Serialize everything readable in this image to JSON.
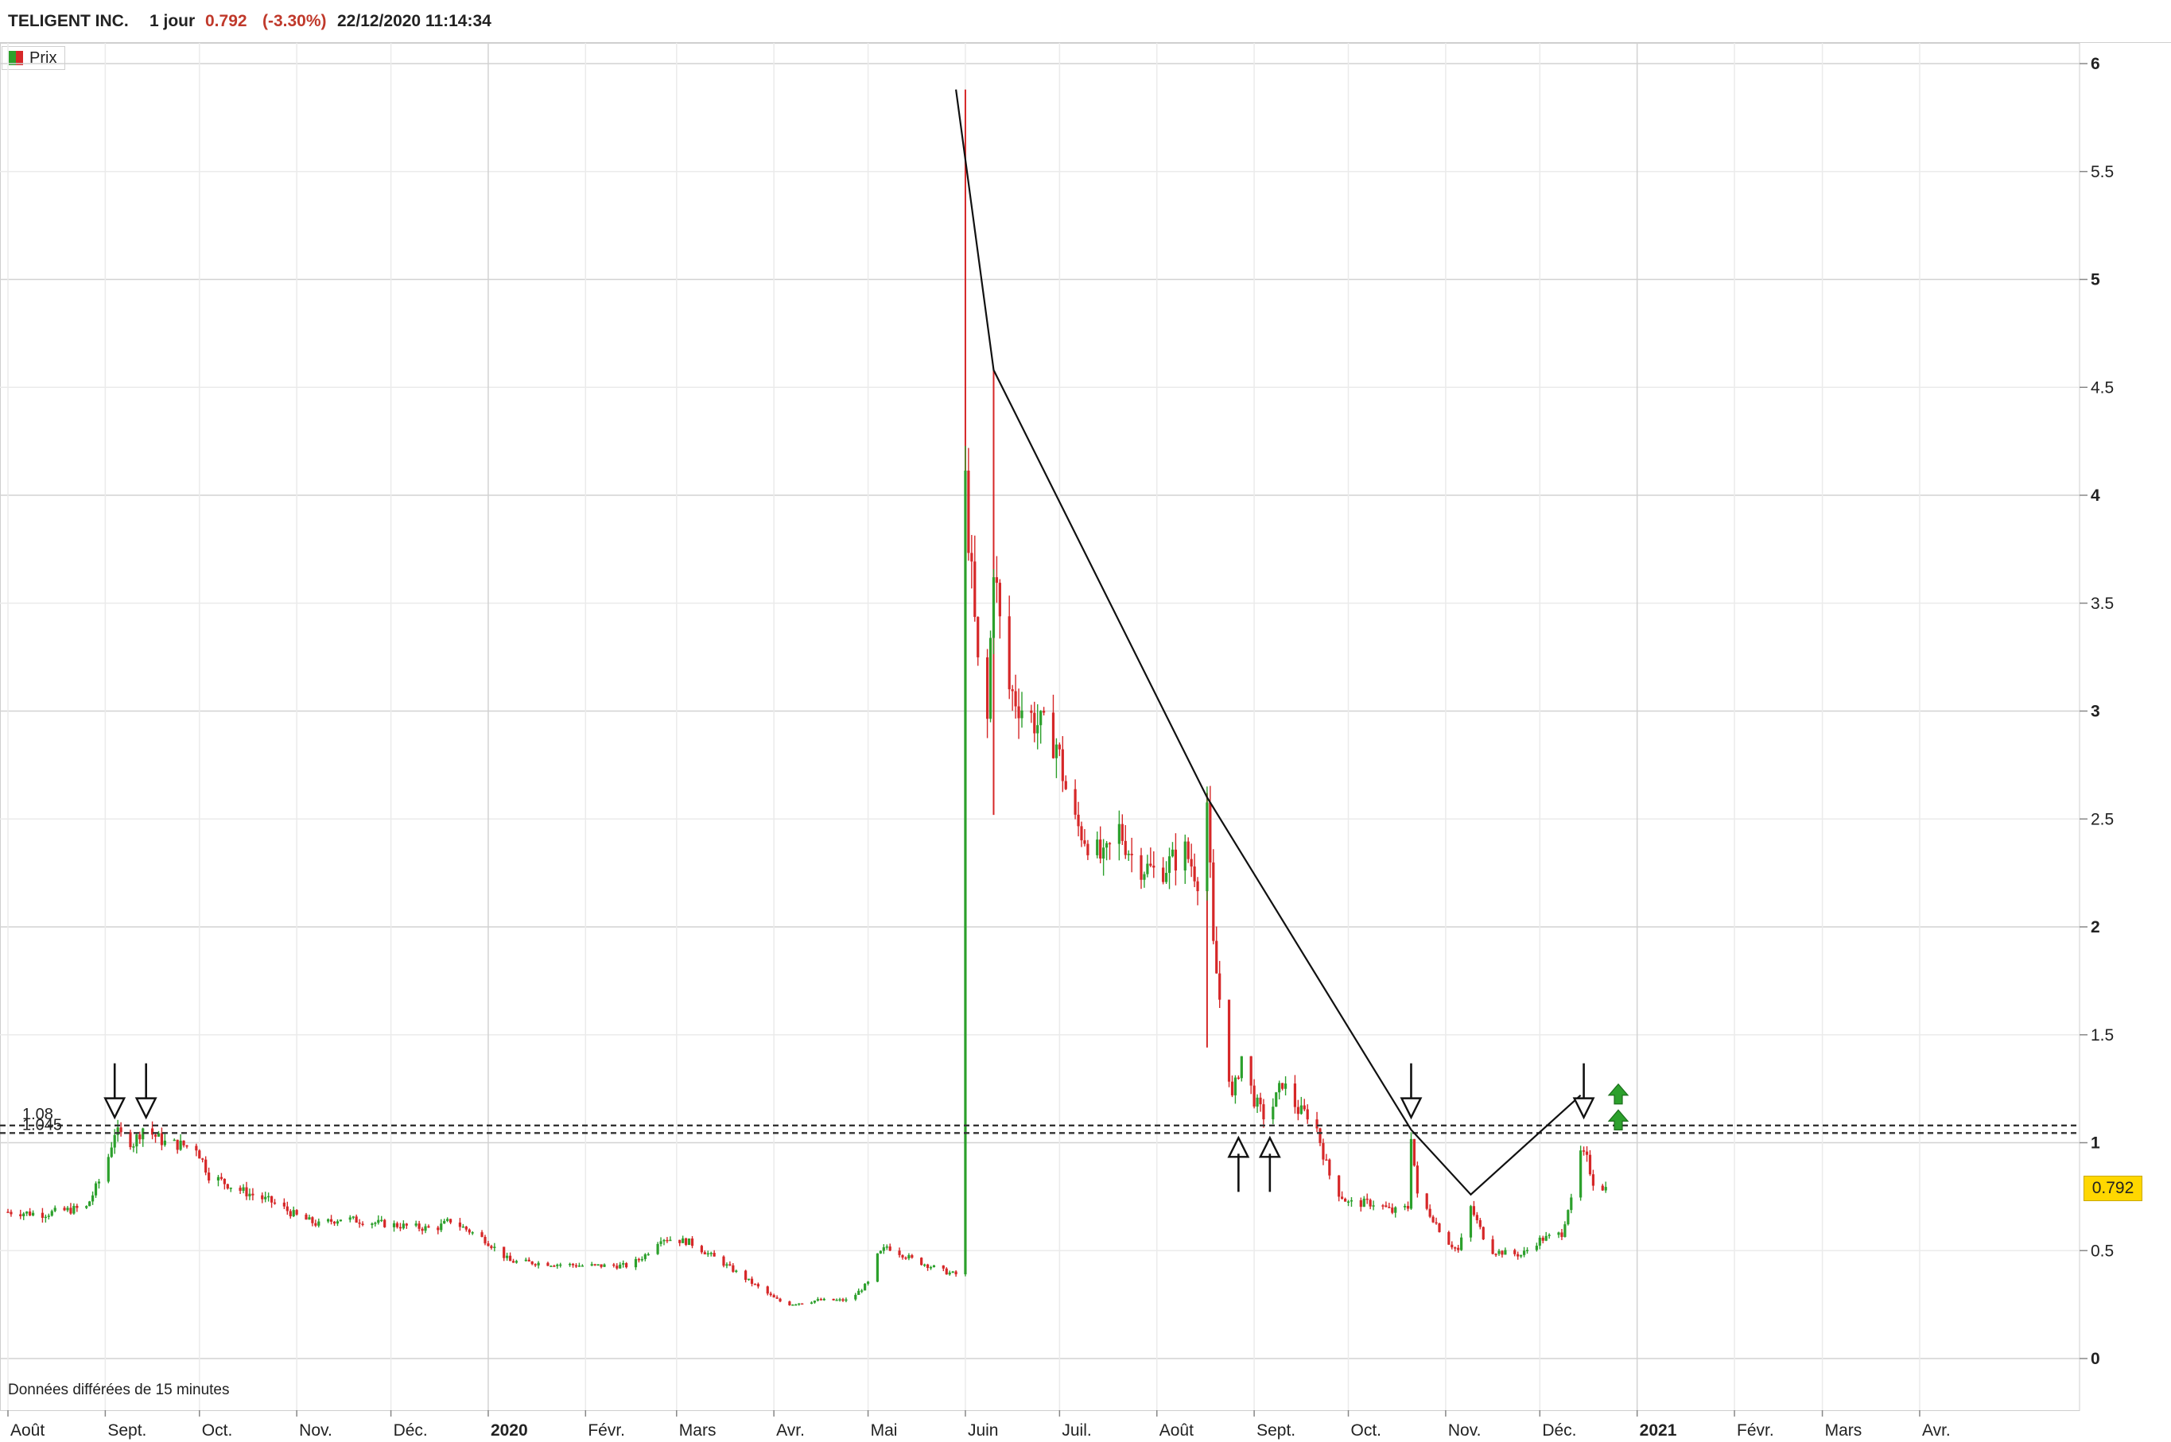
{
  "header": {
    "symbol": "TELIGENT INC.",
    "period": "1 jour",
    "last_price": "0.792",
    "change": "(-3.30%)",
    "datetime": "22/12/2020 11:14:34"
  },
  "legend": {
    "label": "Prix"
  },
  "footnote": "Données différées de 15 minutes",
  "last_price_tag": "0.792",
  "colors": {
    "up": "#2ca02c",
    "down": "#d62728",
    "grid": "#e6e6e6",
    "price_tag": "#ffd700"
  },
  "chart_data": {
    "type": "candlestick",
    "title": "",
    "xlabel": "",
    "ylabel": "",
    "ylim": [
      0,
      6
    ],
    "y_ticks": [
      0,
      0.5,
      1,
      1.5,
      2,
      2.5,
      3,
      3.5,
      4,
      4.5,
      5,
      5.5,
      6
    ],
    "y_tick_labels": [
      "0",
      "0.5",
      "1",
      "1.5",
      "2",
      "2.5",
      "3",
      "3.5",
      "4",
      "4.5",
      "5",
      "5.5",
      "6"
    ],
    "x_range": [
      "2019-08-01",
      "2021-04-30"
    ],
    "x_ticks": [
      {
        "date": "2019-08-01",
        "label": "Août",
        "bold": false
      },
      {
        "date": "2019-09-01",
        "label": "Sept.",
        "bold": false
      },
      {
        "date": "2019-10-01",
        "label": "Oct.",
        "bold": false
      },
      {
        "date": "2019-11-01",
        "label": "Nov.",
        "bold": false
      },
      {
        "date": "2019-12-01",
        "label": "Déc.",
        "bold": false
      },
      {
        "date": "2020-01-01",
        "label": "2020",
        "bold": true
      },
      {
        "date": "2020-02-01",
        "label": "Févr.",
        "bold": false
      },
      {
        "date": "2020-03-01",
        "label": "Mars",
        "bold": false
      },
      {
        "date": "2020-04-01",
        "label": "Avr.",
        "bold": false
      },
      {
        "date": "2020-05-01",
        "label": "Mai",
        "bold": false
      },
      {
        "date": "2020-06-01",
        "label": "Juin",
        "bold": false
      },
      {
        "date": "2020-07-01",
        "label": "Juil.",
        "bold": false
      },
      {
        "date": "2020-08-01",
        "label": "Août",
        "bold": false
      },
      {
        "date": "2020-09-01",
        "label": "Sept.",
        "bold": false
      },
      {
        "date": "2020-10-01",
        "label": "Oct.",
        "bold": false
      },
      {
        "date": "2020-11-01",
        "label": "Nov.",
        "bold": false
      },
      {
        "date": "2020-12-01",
        "label": "Déc.",
        "bold": false
      },
      {
        "date": "2021-01-01",
        "label": "2021",
        "bold": true
      },
      {
        "date": "2021-02-01",
        "label": "Févr.",
        "bold": false
      },
      {
        "date": "2021-03-01",
        "label": "Mars",
        "bold": false
      },
      {
        "date": "2021-04-01",
        "label": "Avr.",
        "bold": false
      }
    ],
    "grid": true,
    "legend": "top-left",
    "series": [
      {
        "name": "Prix",
        "close": [
          [
            "2019-08-01",
            0.68
          ],
          [
            "2019-08-12",
            0.67
          ],
          [
            "2019-08-26",
            0.7
          ],
          [
            "2019-09-01",
            0.88
          ],
          [
            "2019-09-04",
            1.05
          ],
          [
            "2019-09-10",
            1.0
          ],
          [
            "2019-09-13",
            1.07
          ],
          [
            "2019-09-20",
            1.0
          ],
          [
            "2019-09-30",
            0.98
          ],
          [
            "2019-10-04",
            0.85
          ],
          [
            "2019-10-14",
            0.78
          ],
          [
            "2019-10-25",
            0.72
          ],
          [
            "2019-11-01",
            0.66
          ],
          [
            "2019-11-08",
            0.62
          ],
          [
            "2019-11-15",
            0.65
          ],
          [
            "2019-12-01",
            0.62
          ],
          [
            "2019-12-15",
            0.6
          ],
          [
            "2019-12-20",
            0.64
          ],
          [
            "2019-12-31",
            0.55
          ],
          [
            "2020-01-08",
            0.45
          ],
          [
            "2020-01-20",
            0.44
          ],
          [
            "2020-02-01",
            0.43
          ],
          [
            "2020-02-15",
            0.43
          ],
          [
            "2020-02-20",
            0.48
          ],
          [
            "2020-02-25",
            0.56
          ],
          [
            "2020-03-05",
            0.54
          ],
          [
            "2020-03-15",
            0.45
          ],
          [
            "2020-03-25",
            0.35
          ],
          [
            "2020-04-01",
            0.28
          ],
          [
            "2020-04-05",
            0.25
          ],
          [
            "2020-04-15",
            0.27
          ],
          [
            "2020-04-25",
            0.27
          ],
          [
            "2020-05-01",
            0.35
          ],
          [
            "2020-05-03",
            0.46
          ],
          [
            "2020-05-07",
            0.52
          ],
          [
            "2020-05-15",
            0.46
          ],
          [
            "2020-05-26",
            0.4
          ],
          [
            "2020-05-29",
            0.39
          ],
          [
            "2020-06-01",
            4.05
          ],
          [
            "2020-06-03",
            3.6
          ],
          [
            "2020-06-05",
            3.2
          ],
          [
            "2020-06-08",
            2.95
          ],
          [
            "2020-06-10",
            3.7
          ],
          [
            "2020-06-12",
            3.4
          ],
          [
            "2020-06-15",
            3.1
          ],
          [
            "2020-06-20",
            3.0
          ],
          [
            "2020-06-30",
            2.85
          ],
          [
            "2020-07-05",
            2.5
          ],
          [
            "2020-07-15",
            2.3
          ],
          [
            "2020-07-20",
            2.45
          ],
          [
            "2020-07-25",
            2.3
          ],
          [
            "2020-08-01",
            2.25
          ],
          [
            "2020-08-10",
            2.35
          ],
          [
            "2020-08-15",
            2.2
          ],
          [
            "2020-08-17",
            2.58
          ],
          [
            "2020-08-19",
            1.9
          ],
          [
            "2020-08-22",
            1.55
          ],
          [
            "2020-08-25",
            1.2
          ],
          [
            "2020-08-28",
            1.4
          ],
          [
            "2020-09-01",
            1.2
          ],
          [
            "2020-09-05",
            1.1
          ],
          [
            "2020-09-10",
            1.28
          ],
          [
            "2020-09-15",
            1.15
          ],
          [
            "2020-09-20",
            1.12
          ],
          [
            "2020-09-23",
            0.95
          ],
          [
            "2020-09-26",
            0.8
          ],
          [
            "2020-10-01",
            0.72
          ],
          [
            "2020-10-10",
            0.72
          ],
          [
            "2020-10-15",
            0.68
          ],
          [
            "2020-10-20",
            0.7
          ],
          [
            "2020-10-21",
            1.04
          ],
          [
            "2020-10-23",
            0.75
          ],
          [
            "2020-10-28",
            0.65
          ],
          [
            "2020-11-01",
            0.55
          ],
          [
            "2020-11-05",
            0.5
          ],
          [
            "2020-11-09",
            0.7
          ],
          [
            "2020-11-15",
            0.5
          ],
          [
            "2020-11-25",
            0.48
          ],
          [
            "2020-12-01",
            0.55
          ],
          [
            "2020-12-08",
            0.58
          ],
          [
            "2020-12-10",
            0.7
          ],
          [
            "2020-12-12",
            0.75
          ],
          [
            "2020-12-14",
            0.95
          ],
          [
            "2020-12-16",
            0.92
          ],
          [
            "2020-12-18",
            0.82
          ],
          [
            "2020-12-22",
            0.79
          ]
        ]
      }
    ],
    "horizontal_levels": [
      {
        "value": 1.08,
        "label": "1.08",
        "style": "dashed"
      },
      {
        "value": 1.045,
        "label": "1.045",
        "style": "dashed"
      }
    ],
    "trendline": [
      [
        "2020-05-29",
        5.88
      ],
      [
        "2020-06-10",
        4.58
      ],
      [
        "2020-08-17",
        2.6
      ],
      [
        "2020-10-21",
        1.06
      ],
      [
        "2020-11-09",
        0.76
      ],
      [
        "2020-12-14",
        1.22
      ]
    ],
    "markers": [
      {
        "date": "2019-09-04",
        "value": 1.11,
        "type": "arrow-down"
      },
      {
        "date": "2019-09-14",
        "value": 1.11,
        "type": "arrow-down"
      },
      {
        "date": "2020-08-27",
        "value": 1.03,
        "type": "arrow-up"
      },
      {
        "date": "2020-09-06",
        "value": 1.03,
        "type": "arrow-up"
      },
      {
        "date": "2020-10-21",
        "value": 1.11,
        "type": "arrow-down"
      },
      {
        "date": "2020-12-15",
        "value": 1.11,
        "type": "arrow-down"
      },
      {
        "date": "2020-12-26",
        "value": 1.22,
        "type": "signal-up"
      },
      {
        "date": "2020-12-26",
        "value": 1.1,
        "type": "signal-up"
      }
    ]
  }
}
